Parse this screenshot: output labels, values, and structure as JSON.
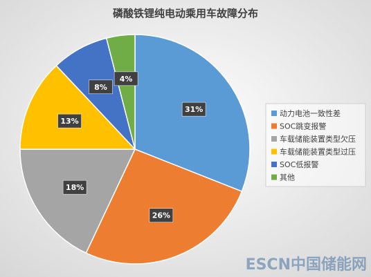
{
  "chart_data": {
    "type": "pie",
    "title": "磷酸铁锂纯电动乘用车故障分布",
    "categories": [
      "动力电池一致性差",
      "SOC跳变报警",
      "车载储能装置类型欠压",
      "车载储能装置类型过压",
      "SOC低报警",
      "其他"
    ],
    "values": [
      31,
      26,
      18,
      13,
      8,
      4
    ],
    "value_labels": [
      "31%",
      "26%",
      "18%",
      "13%",
      "8%",
      "4%"
    ],
    "colors": [
      "#5b9bd5",
      "#ed7d31",
      "#a5a5a5",
      "#ffc000",
      "#4472c4",
      "#70ad47"
    ],
    "legend": "right",
    "watermark": "ESCN中国储能网"
  }
}
